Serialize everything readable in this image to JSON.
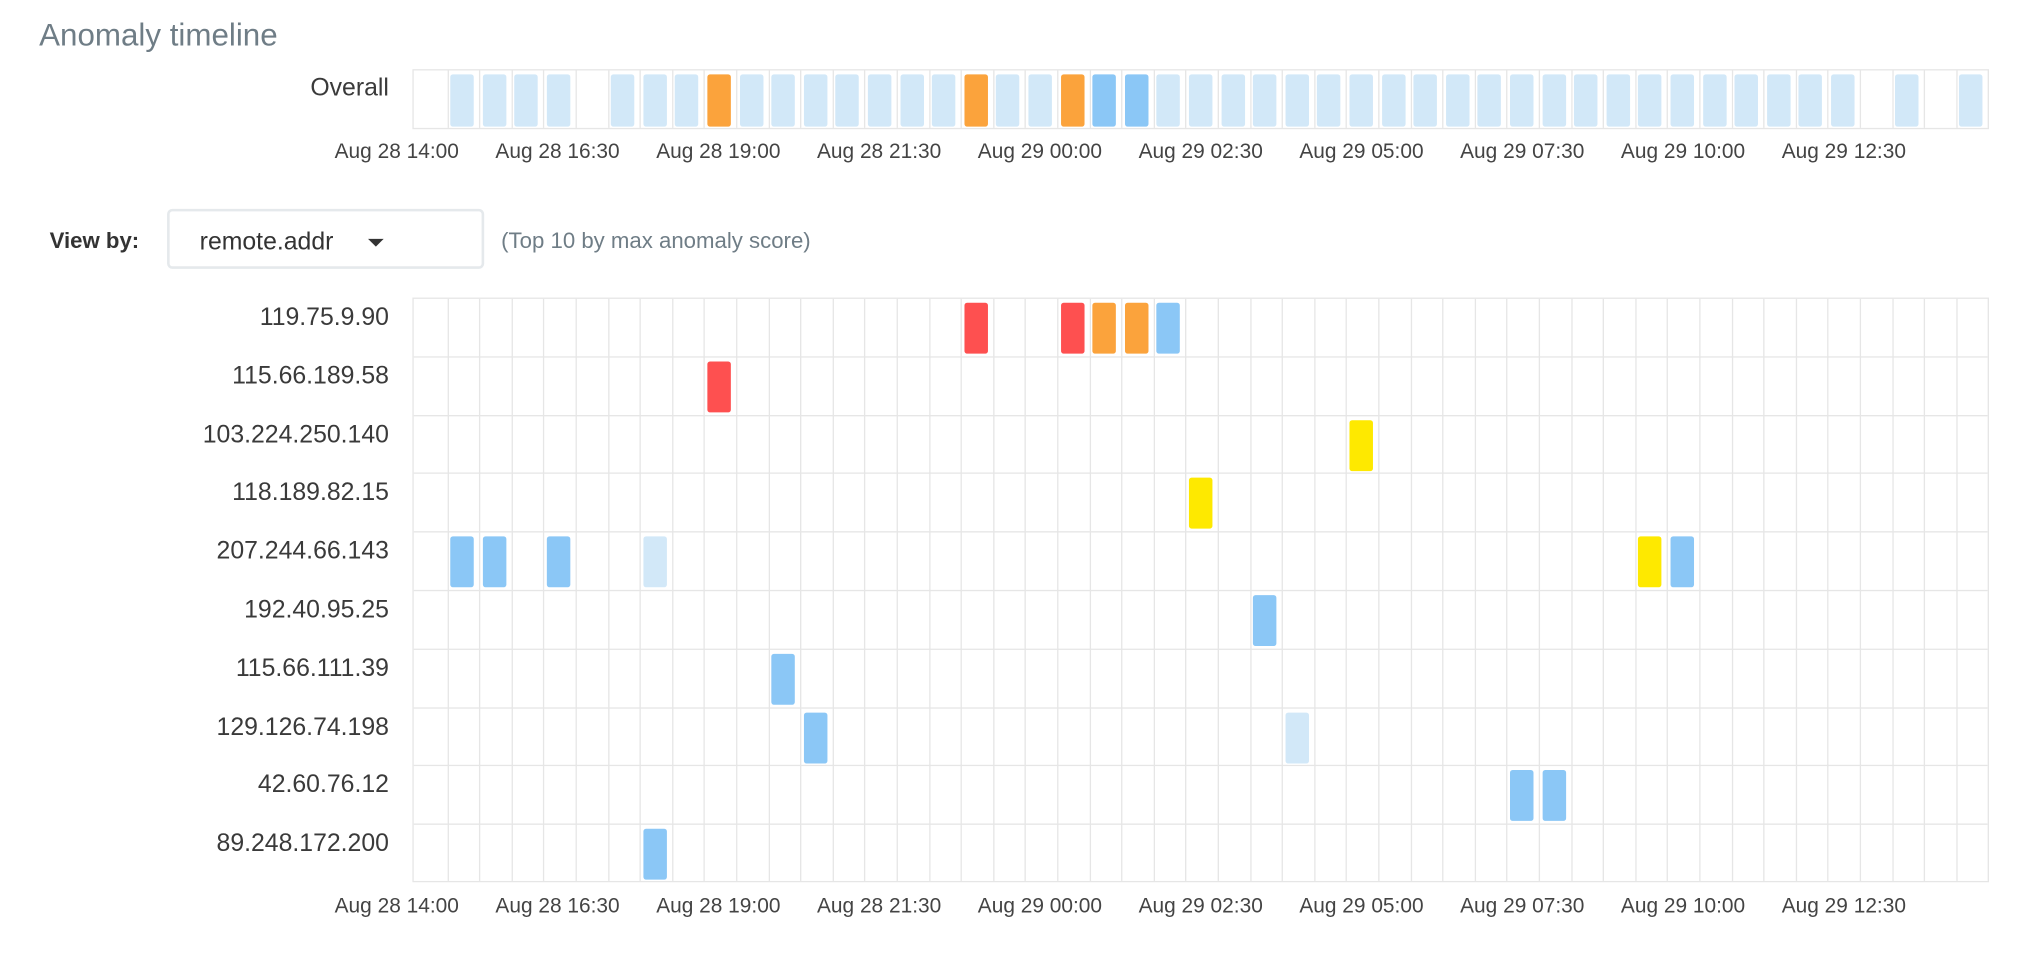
{
  "panel": {
    "title": "Anomaly timeline"
  },
  "colors": {
    "low": "#d2e8f8",
    "warning": "#8bc7f6",
    "minor": "#fee900",
    "major": "#fba33c",
    "critical": "#fe5050",
    "grid": "#e6e6e6"
  },
  "overall": {
    "label": "Overall",
    "cells": [
      {
        "col": 1,
        "severity": "low"
      },
      {
        "col": 2,
        "severity": "low"
      },
      {
        "col": 3,
        "severity": "low"
      },
      {
        "col": 4,
        "severity": "low"
      },
      {
        "col": 6,
        "severity": "low"
      },
      {
        "col": 7,
        "severity": "low"
      },
      {
        "col": 8,
        "severity": "low"
      },
      {
        "col": 9,
        "severity": "major"
      },
      {
        "col": 10,
        "severity": "low"
      },
      {
        "col": 11,
        "severity": "low"
      },
      {
        "col": 12,
        "severity": "low"
      },
      {
        "col": 13,
        "severity": "low"
      },
      {
        "col": 14,
        "severity": "low"
      },
      {
        "col": 15,
        "severity": "low"
      },
      {
        "col": 16,
        "severity": "low"
      },
      {
        "col": 17,
        "severity": "major"
      },
      {
        "col": 18,
        "severity": "low"
      },
      {
        "col": 19,
        "severity": "low"
      },
      {
        "col": 20,
        "severity": "major"
      },
      {
        "col": 21,
        "severity": "warning"
      },
      {
        "col": 22,
        "severity": "warning"
      },
      {
        "col": 23,
        "severity": "low"
      },
      {
        "col": 24,
        "severity": "low"
      },
      {
        "col": 25,
        "severity": "low"
      },
      {
        "col": 26,
        "severity": "low"
      },
      {
        "col": 27,
        "severity": "low"
      },
      {
        "col": 28,
        "severity": "low"
      },
      {
        "col": 29,
        "severity": "low"
      },
      {
        "col": 30,
        "severity": "low"
      },
      {
        "col": 31,
        "severity": "low"
      },
      {
        "col": 32,
        "severity": "low"
      },
      {
        "col": 33,
        "severity": "low"
      },
      {
        "col": 34,
        "severity": "low"
      },
      {
        "col": 35,
        "severity": "low"
      },
      {
        "col": 36,
        "severity": "low"
      },
      {
        "col": 37,
        "severity": "low"
      },
      {
        "col": 38,
        "severity": "low"
      },
      {
        "col": 39,
        "severity": "low"
      },
      {
        "col": 40,
        "severity": "low"
      },
      {
        "col": 41,
        "severity": "low"
      },
      {
        "col": 42,
        "severity": "low"
      },
      {
        "col": 43,
        "severity": "low"
      },
      {
        "col": 44,
        "severity": "low"
      },
      {
        "col": 46,
        "severity": "low"
      },
      {
        "col": 48,
        "severity": "low"
      }
    ]
  },
  "axis_ticks": [
    "Aug 28 14:00",
    "Aug 28 16:30",
    "Aug 28 19:00",
    "Aug 28 21:30",
    "Aug 29 00:00",
    "Aug 29 02:30",
    "Aug 29 05:00",
    "Aug 29 07:30",
    "Aug 29 10:00",
    "Aug 29 12:30"
  ],
  "view_by": {
    "label": "View by:",
    "selected": "remote.addr",
    "hint": "(Top 10 by max anomaly score)"
  },
  "swimlanes": [
    {
      "label": "119.75.9.90",
      "cells": [
        {
          "col": 17,
          "severity": "critical"
        },
        {
          "col": 20,
          "severity": "critical"
        },
        {
          "col": 21,
          "severity": "major"
        },
        {
          "col": 22,
          "severity": "major"
        },
        {
          "col": 23,
          "severity": "warning"
        }
      ]
    },
    {
      "label": "115.66.189.58",
      "cells": [
        {
          "col": 9,
          "severity": "critical"
        }
      ]
    },
    {
      "label": "103.224.250.140",
      "cells": [
        {
          "col": 29,
          "severity": "minor"
        }
      ]
    },
    {
      "label": "118.189.82.15",
      "cells": [
        {
          "col": 24,
          "severity": "minor"
        }
      ]
    },
    {
      "label": "207.244.66.143",
      "cells": [
        {
          "col": 1,
          "severity": "warning"
        },
        {
          "col": 2,
          "severity": "warning"
        },
        {
          "col": 4,
          "severity": "warning"
        },
        {
          "col": 7,
          "severity": "low"
        },
        {
          "col": 38,
          "severity": "minor"
        },
        {
          "col": 39,
          "severity": "warning"
        }
      ]
    },
    {
      "label": "192.40.95.25",
      "cells": [
        {
          "col": 26,
          "severity": "warning"
        }
      ]
    },
    {
      "label": "115.66.111.39",
      "cells": [
        {
          "col": 11,
          "severity": "warning"
        }
      ]
    },
    {
      "label": "129.126.74.198",
      "cells": [
        {
          "col": 12,
          "severity": "warning"
        },
        {
          "col": 27,
          "severity": "low"
        }
      ]
    },
    {
      "label": "42.60.76.12",
      "cells": [
        {
          "col": 34,
          "severity": "warning"
        },
        {
          "col": 35,
          "severity": "warning"
        }
      ]
    },
    {
      "label": "89.248.172.200",
      "cells": [
        {
          "col": 7,
          "severity": "warning"
        }
      ]
    }
  ]
}
